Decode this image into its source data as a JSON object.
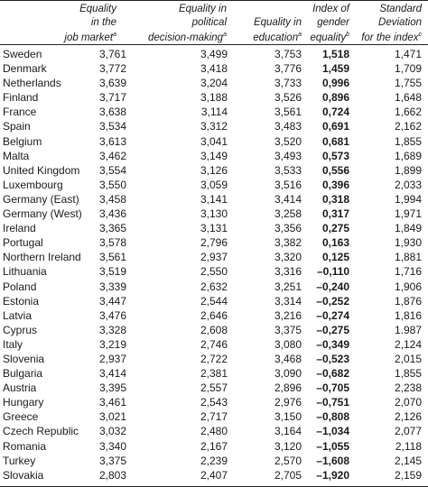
{
  "headers": [
    {
      "lines": [
        "Equality",
        "in the",
        "job market"
      ],
      "sup": "a"
    },
    {
      "lines": [
        "Equality in",
        "political",
        "decision-making"
      ],
      "sup": "a"
    },
    {
      "lines": [
        "Equality in",
        "education"
      ],
      "sup": "a"
    },
    {
      "lines": [
        "Index of",
        "gender",
        "equality"
      ],
      "sup": "b"
    },
    {
      "lines": [
        "Standard",
        "Deviation",
        "for the index"
      ],
      "sup": "c"
    }
  ],
  "rows": [
    [
      "Sweden",
      "3,761",
      "3,499",
      "3,753",
      "1,518",
      "1,471"
    ],
    [
      "Denmark",
      "3,772",
      "3,418",
      "3,776",
      "1,459",
      "1,709"
    ],
    [
      "Netherlands",
      "3,639",
      "3,204",
      "3,733",
      "0,996",
      "1,755"
    ],
    [
      "Finland",
      "3,717",
      "3,188",
      "3,526",
      "0,896",
      "1,648"
    ],
    [
      "France",
      "3,638",
      "3,114",
      "3,561",
      "0,724",
      "1,662"
    ],
    [
      "Spain",
      "3,534",
      "3,312",
      "3,483",
      "0,691",
      "2,162"
    ],
    [
      "Belgium",
      "3,613",
      "3,041",
      "3,520",
      "0,681",
      "1,855"
    ],
    [
      "Malta",
      "3,462",
      "3,149",
      "3,493",
      "0,573",
      "1,689"
    ],
    [
      "United Kingdom",
      "3,554",
      "3,126",
      "3,533",
      "0,556",
      "1,899"
    ],
    [
      "Luxembourg",
      "3,550",
      "3,059",
      "3,516",
      "0,396",
      "2,033"
    ],
    [
      "Germany (East)",
      "3,458",
      "3,141",
      "3,414",
      "0,318",
      "1,994"
    ],
    [
      "Germany (West)",
      "3,436",
      "3,130",
      "3,258",
      "0,317",
      "1,971"
    ],
    [
      "Ireland",
      "3,365",
      "3,131",
      "3,356",
      "0,275",
      "1,849"
    ],
    [
      "Portugal",
      "3,578",
      "2,796",
      "3,382",
      "0,163",
      "1,930"
    ],
    [
      "Northern Ireland",
      "3,561",
      "2,937",
      "3,320",
      "0,125",
      "1,881"
    ],
    [
      "Lithuania",
      "3,519",
      "2,550",
      "3,316",
      "–0,110",
      "1,716"
    ],
    [
      "Poland",
      "3,339",
      "2,632",
      "3,251",
      "–0,240",
      "1,906"
    ],
    [
      "Estonia",
      "3,447",
      "2,544",
      "3,314",
      "–0,252",
      "1,876"
    ],
    [
      "Latvia",
      "3,476",
      "2,646",
      "3,216",
      "–0,274",
      "1,816"
    ],
    [
      "Cyprus",
      "3,328",
      "2,608",
      "3,375",
      "–0,275",
      "1.987"
    ],
    [
      "Italy",
      "3,219",
      "2,746",
      "3,080",
      "–0,349",
      "2,124"
    ],
    [
      "Slovenia",
      "2,937",
      "2,722",
      "3,468",
      "–0,523",
      "2,015"
    ],
    [
      "Bulgaria",
      "3,414",
      "2,381",
      "3,090",
      "–0,682",
      "1,855"
    ],
    [
      "Austria",
      "3,395",
      "2,557",
      "2,896",
      "–0,705",
      "2,238"
    ],
    [
      "Hungary",
      "3,461",
      "2,543",
      "2,976",
      "–0,751",
      "2,070"
    ],
    [
      "Greece",
      "3,021",
      "2,717",
      "3,150",
      "–0,808",
      "2,126"
    ],
    [
      "Czech Republic",
      "3,032",
      "2,480",
      "3,164",
      "–1,034",
      "2,077"
    ],
    [
      "Romania",
      "3,340",
      "2,167",
      "3,120",
      "–1,055",
      "2,118"
    ],
    [
      "Turkey",
      "3,375",
      "2,239",
      "2,570",
      "–1,608",
      "2,145"
    ],
    [
      "Slovakia",
      "2,803",
      "2,407",
      "2,705",
      "–1,920",
      "2,159"
    ]
  ]
}
